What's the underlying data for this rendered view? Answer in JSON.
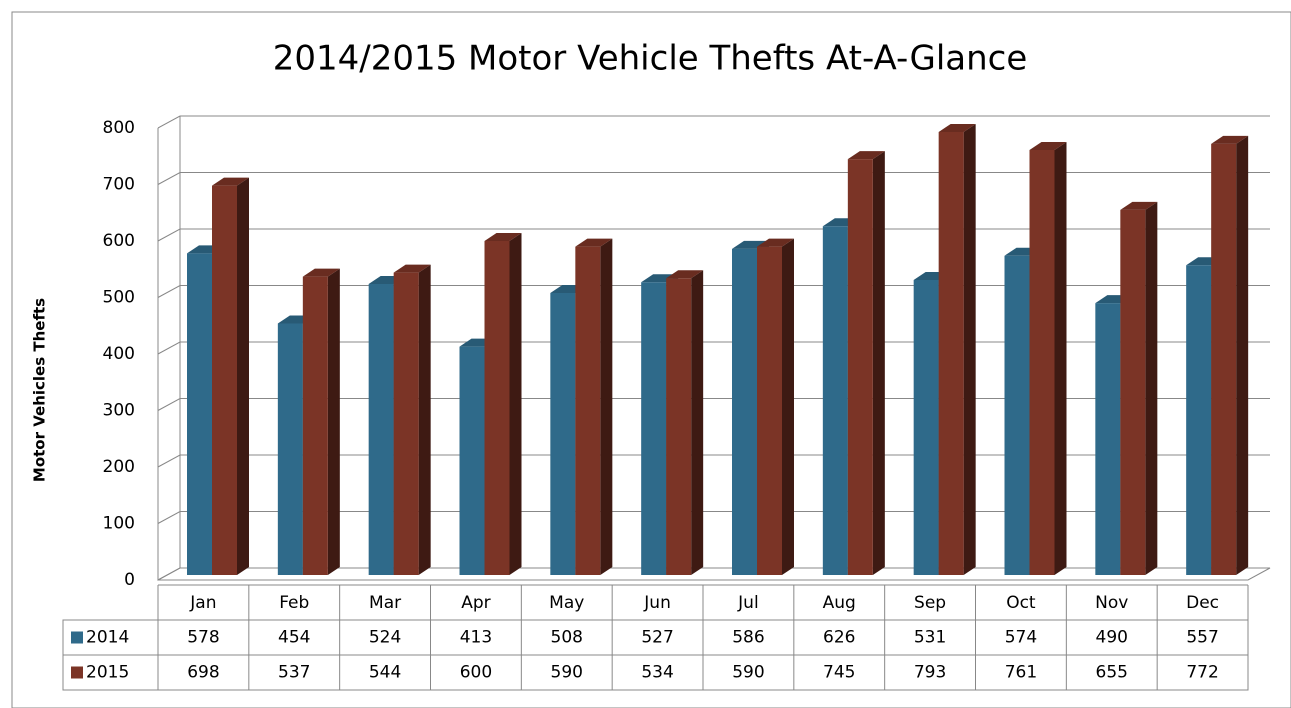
{
  "chart_data": {
    "type": "bar3d",
    "title": "2014/2015 Motor Vehicle Thefts At-A-Glance",
    "ylabel": "Motor Vehicles  Thefts",
    "categories": [
      "Jan",
      "Feb",
      "Mar",
      "Apr",
      "May",
      "Jun",
      "Jul",
      "Aug",
      "Sep",
      "Oct",
      "Nov",
      "Dec"
    ],
    "series": [
      {
        "name": "2014",
        "color": "#2f6a8a",
        "values": [
          578,
          454,
          524,
          413,
          508,
          527,
          586,
          626,
          531,
          574,
          490,
          557
        ]
      },
      {
        "name": "2015",
        "color": "#7b3426",
        "values": [
          698,
          537,
          544,
          600,
          590,
          534,
          590,
          745,
          793,
          761,
          655,
          772
        ]
      }
    ],
    "ylim": [
      0,
      800
    ],
    "yticks": [
      0,
      100,
      200,
      300,
      400,
      500,
      600,
      700,
      800
    ],
    "grid": true
  }
}
